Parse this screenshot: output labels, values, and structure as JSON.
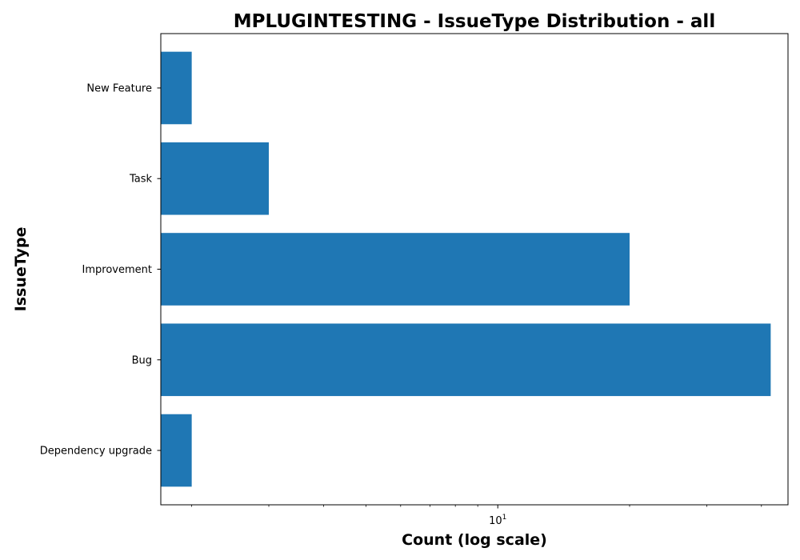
{
  "chart_data": {
    "type": "bar",
    "orientation": "horizontal",
    "title": "MPLUGINTESTING - IssueType Distribution - all",
    "xlabel": "Count (log scale)",
    "ylabel": "IssueType",
    "x_scale": "log",
    "xlim": [
      1.7,
      46
    ],
    "x_major_ticks": [
      {
        "value": 10,
        "base": "10",
        "exp": "1"
      }
    ],
    "x_minor_ticks": [
      2,
      3,
      4,
      5,
      6,
      7,
      8,
      9,
      20,
      30,
      40
    ],
    "categories": [
      "Dependency upgrade",
      "Bug",
      "Improvement",
      "Task",
      "New Feature"
    ],
    "values": [
      2,
      42,
      20,
      3,
      2
    ],
    "bar_color": "#1f77b4",
    "grid": false,
    "legend": "none"
  }
}
